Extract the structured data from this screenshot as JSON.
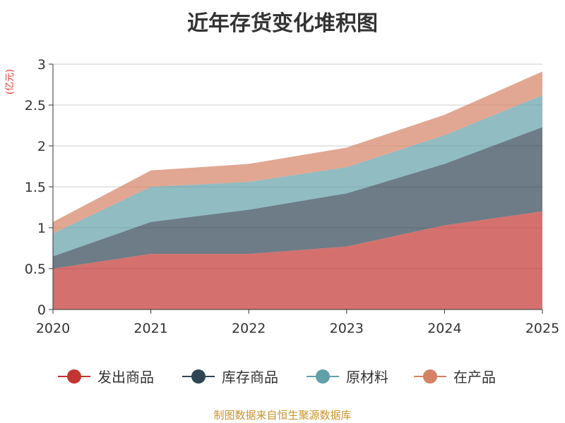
{
  "chart_data": {
    "type": "area",
    "stacked": true,
    "title": "近年存货变化堆积图",
    "ylabel": "(亿元)",
    "x": [
      "2020",
      "2021",
      "2022",
      "2023",
      "2024",
      "2025"
    ],
    "ylim": [
      0,
      3
    ],
    "yticks": [
      "0",
      "0.5",
      "1",
      "1.5",
      "2",
      "2.5",
      "3"
    ],
    "grid": true,
    "legend": "bottom",
    "series": [
      {
        "name": "发出商品",
        "color": "#c23531",
        "values": [
          0.5,
          0.68,
          0.68,
          0.77,
          1.03,
          1.2
        ]
      },
      {
        "name": "库存商品",
        "color": "#2f4554",
        "values": [
          0.15,
          0.39,
          0.54,
          0.65,
          0.75,
          1.03
        ]
      },
      {
        "name": "原材料",
        "color": "#61a0a8",
        "values": [
          0.28,
          0.43,
          0.34,
          0.32,
          0.35,
          0.39
        ]
      },
      {
        "name": "在产品",
        "color": "#d48265",
        "values": [
          0.14,
          0.2,
          0.22,
          0.24,
          0.25,
          0.29
        ]
      }
    ]
  },
  "source_note": "制图数据来自恒生聚源数据库"
}
